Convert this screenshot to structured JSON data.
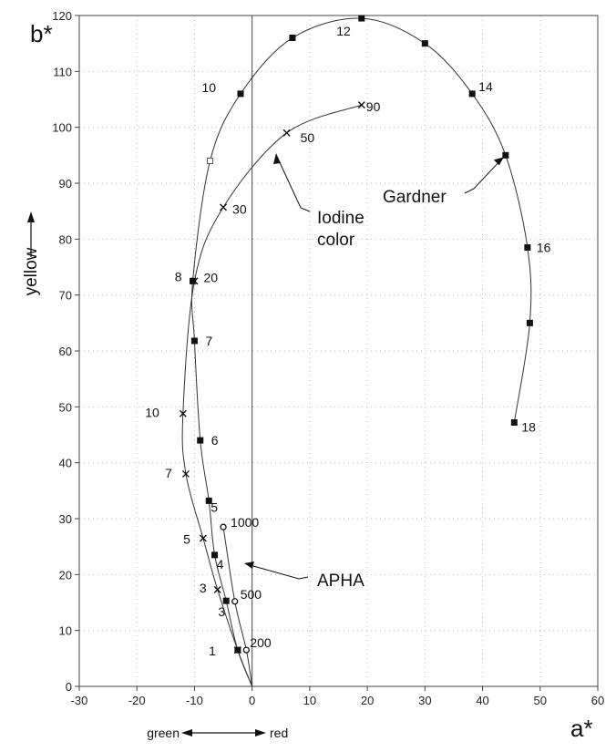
{
  "chart_data": {
    "type": "line",
    "x_label": "a*",
    "y_label": "b*",
    "y_direction_label": "yellow",
    "x_direction_labels": [
      "green",
      "red"
    ],
    "xlim": [
      -30,
      60
    ],
    "ylim": [
      0,
      120
    ],
    "x_ticks": [
      "-30",
      "-20",
      "-10",
      "0",
      "10",
      "20",
      "30",
      "40",
      "50",
      "60"
    ],
    "y_ticks": [
      "0",
      "10",
      "20",
      "30",
      "40",
      "50",
      "60",
      "70",
      "80",
      "90",
      "100",
      "110",
      "120"
    ],
    "grid": "dotted",
    "series": [
      {
        "name": "Gardner",
        "marker": "square",
        "points": [
          {
            "a": -2.5,
            "b": 6.5,
            "label": "1"
          },
          {
            "a": -4.5,
            "b": 15.3,
            "label": "3"
          },
          {
            "a": -6.5,
            "b": 23.5,
            "label": "4"
          },
          {
            "a": -7.5,
            "b": 33.2,
            "label": "5"
          },
          {
            "a": -9,
            "b": 44,
            "label": "6"
          },
          {
            "a": -10,
            "b": 61.8,
            "label": "7"
          },
          {
            "a": -10.3,
            "b": 72.5,
            "label": "8"
          },
          {
            "a": -7.3,
            "b": 94,
            "label": ""
          },
          {
            "a": -2,
            "b": 106,
            "label": "10"
          },
          {
            "a": 7,
            "b": 116,
            "label": ""
          },
          {
            "a": 19,
            "b": 119.5,
            "label": "12"
          },
          {
            "a": 30,
            "b": 115,
            "label": ""
          },
          {
            "a": 38.2,
            "b": 106,
            "label": "14"
          },
          {
            "a": 44,
            "b": 95,
            "label": ""
          },
          {
            "a": 47.8,
            "b": 78.5,
            "label": "16"
          },
          {
            "a": 48.2,
            "b": 65,
            "label": ""
          },
          {
            "a": 45.5,
            "b": 47.2,
            "label": "18"
          }
        ]
      },
      {
        "name": "Iodine color",
        "marker": "x",
        "points": [
          {
            "a": -2.5,
            "b": 6.5,
            "label": ""
          },
          {
            "a": -6,
            "b": 17.3,
            "label": "3"
          },
          {
            "a": -8.5,
            "b": 26.5,
            "label": "5"
          },
          {
            "a": -11.5,
            "b": 38,
            "label": "7"
          },
          {
            "a": -12,
            "b": 48.8,
            "label": "10"
          },
          {
            "a": -10,
            "b": 72.5,
            "label": "20"
          },
          {
            "a": -5,
            "b": 85.7,
            "label": "30"
          },
          {
            "a": 6,
            "b": 99,
            "label": "50"
          },
          {
            "a": 19,
            "b": 104,
            "label": "90"
          }
        ]
      },
      {
        "name": "APHA",
        "marker": "circle",
        "points": [
          {
            "a": -1,
            "b": 6.5,
            "label": "200"
          },
          {
            "a": -3,
            "b": 15.2,
            "label": "500"
          },
          {
            "a": -5,
            "b": 28.5,
            "label": "1000"
          }
        ]
      }
    ]
  }
}
